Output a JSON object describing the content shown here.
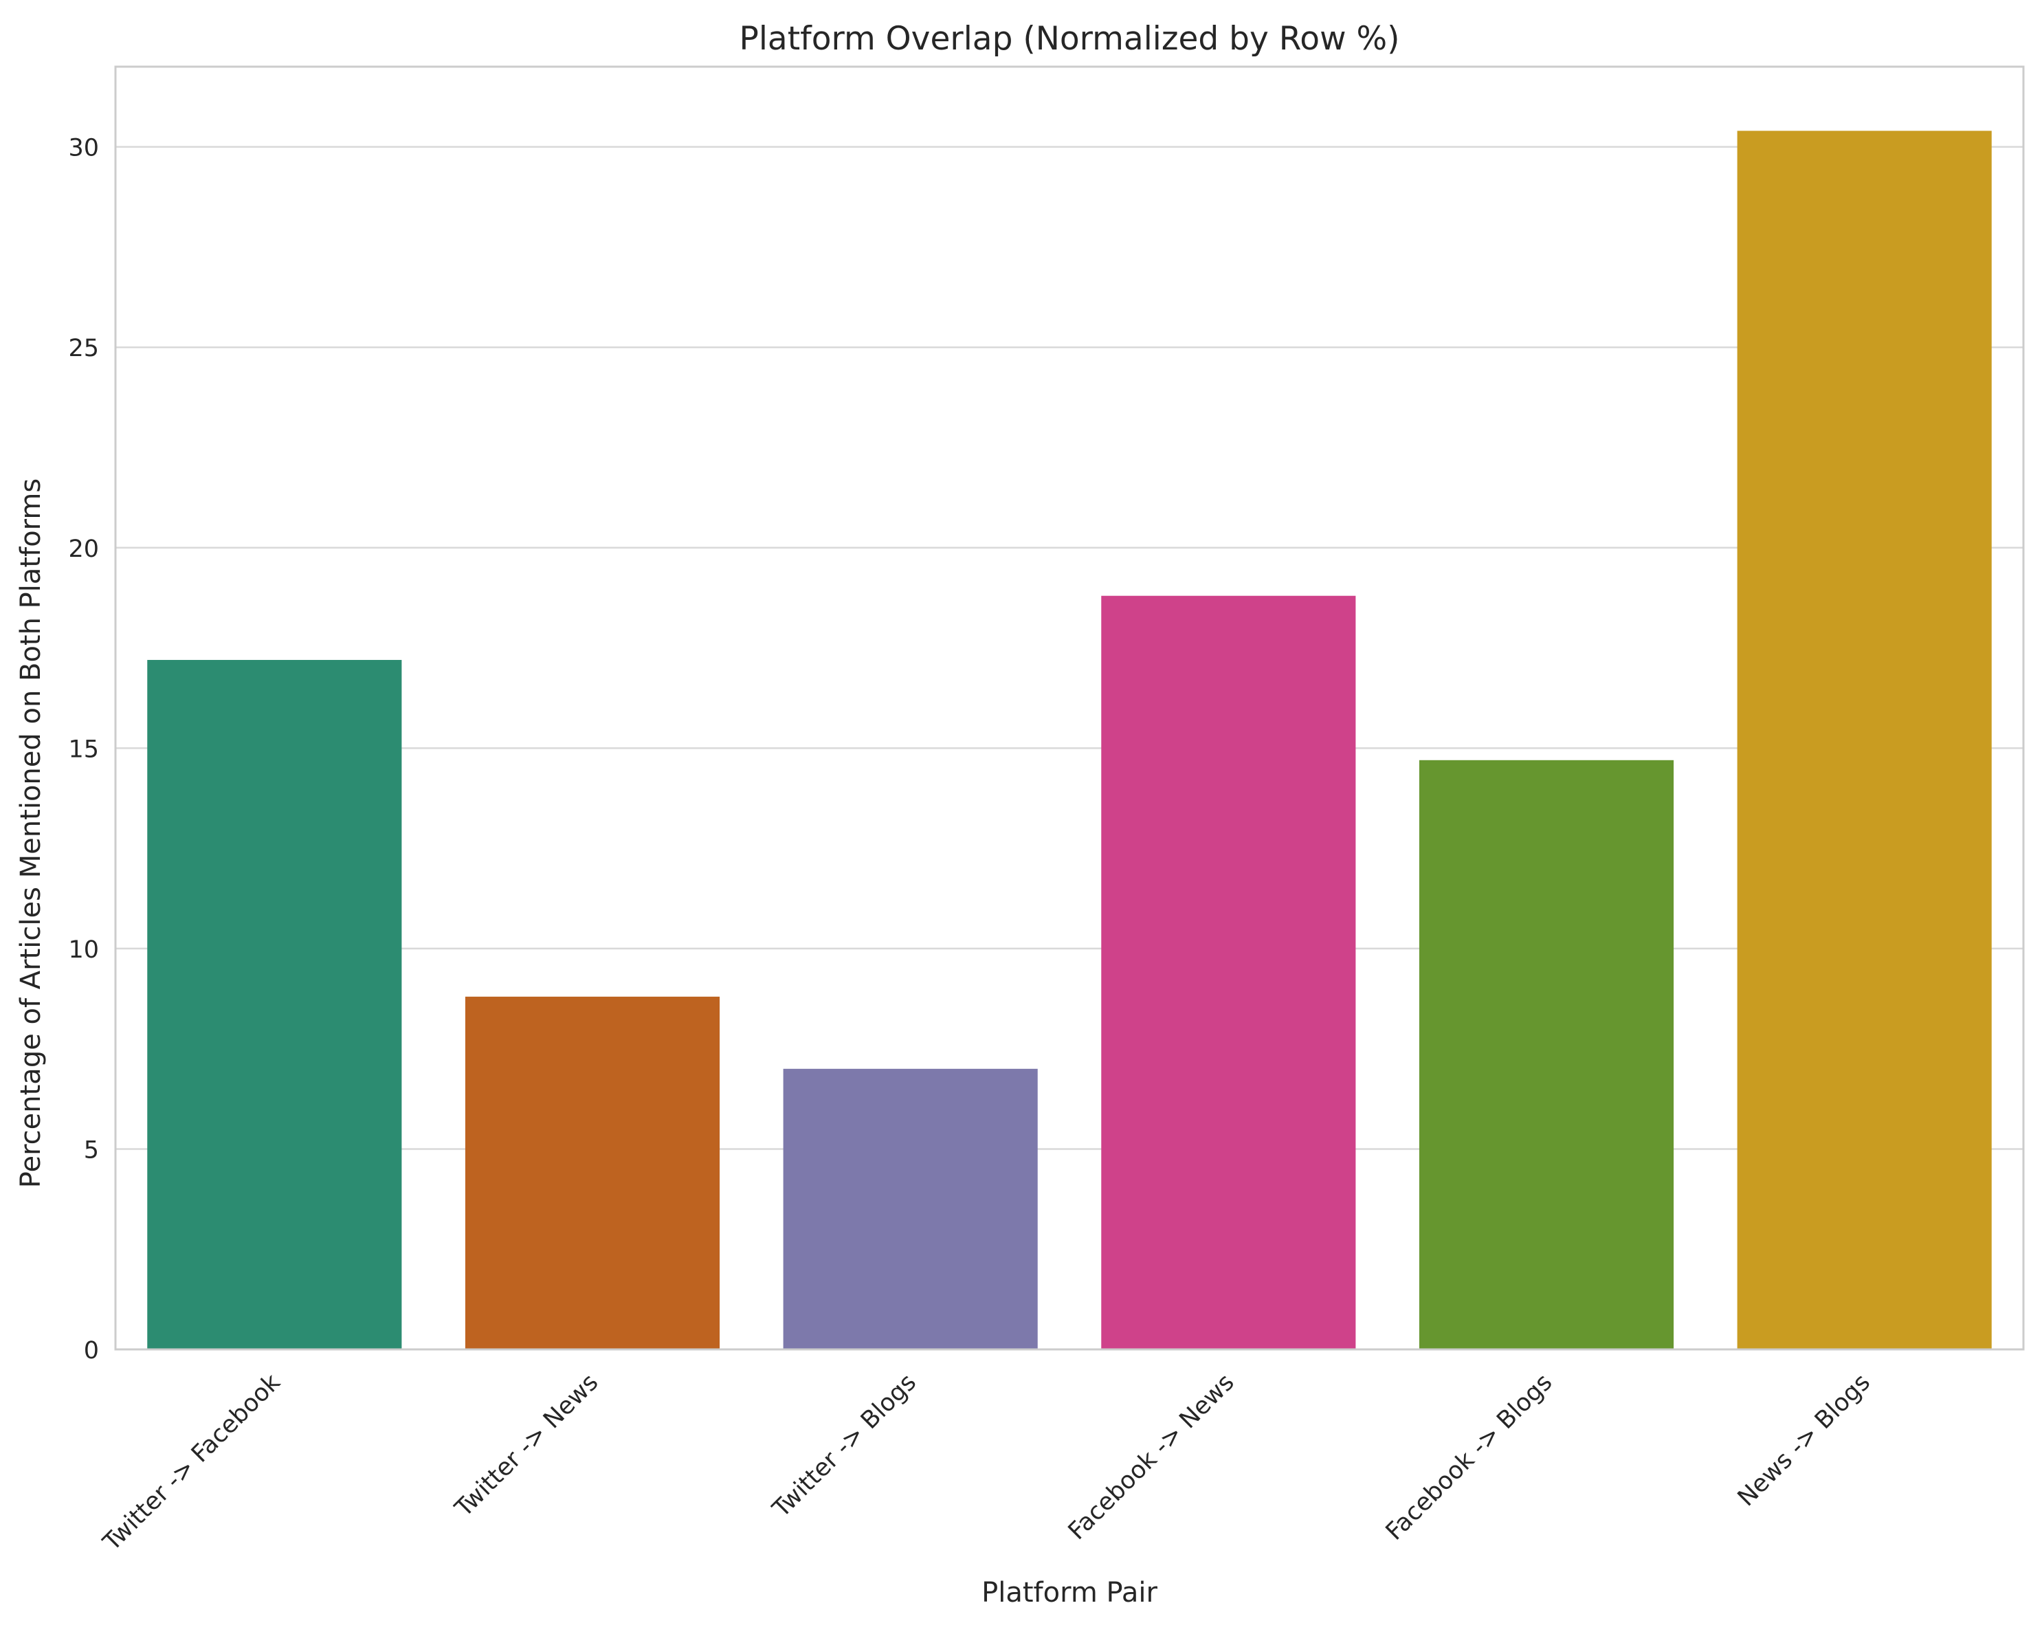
{
  "chart_data": {
    "type": "bar",
    "title": "Platform Overlap (Normalized by Row %)",
    "xlabel": "Platform Pair",
    "ylabel": "Percentage of Articles Mentioned on Both Platforms",
    "categories": [
      "Twitter -> Facebook",
      "Twitter -> News",
      "Twitter -> Blogs",
      "Facebook -> News",
      "Facebook -> Blogs",
      "News -> Blogs"
    ],
    "values": [
      17.2,
      8.8,
      7.0,
      18.8,
      14.7,
      30.4
    ],
    "colors": [
      "#2c8c71",
      "#be6320",
      "#7d79ab",
      "#cf428a",
      "#66962f",
      "#c99c21"
    ],
    "ylim": [
      0,
      32
    ],
    "yticks": [
      0,
      5,
      10,
      15,
      20,
      25,
      30
    ],
    "ytick_labels": [
      "0",
      "5",
      "10",
      "15",
      "20",
      "25",
      "30"
    ],
    "grid": "horizontal",
    "grid_color": "#d9d9d9",
    "axes_edge_color": "#cccccc",
    "legend": "none"
  }
}
